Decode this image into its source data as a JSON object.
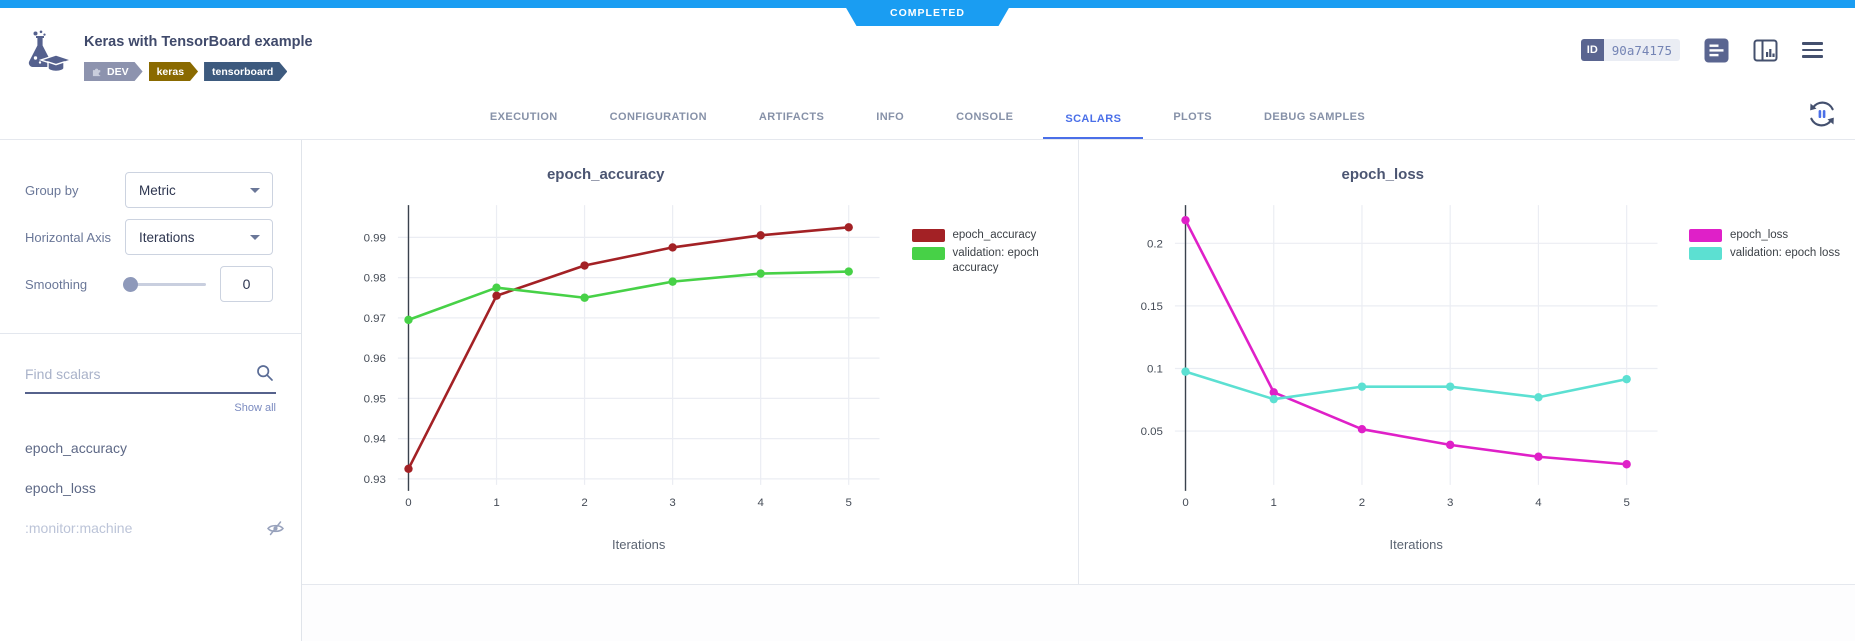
{
  "status_banner": {
    "label": "COMPLETED",
    "color": "#1a9df2"
  },
  "header": {
    "title": "Keras with TensorBoard example",
    "tags": [
      {
        "label": "DEV",
        "color": "#8d93ae"
      },
      {
        "label": "keras",
        "color": "#8a6a00"
      },
      {
        "label": "tensorboard",
        "color": "#3d5a7e"
      }
    ],
    "id_badge": {
      "label": "ID",
      "value": "90a74175"
    },
    "icons": [
      "experiment-icon",
      "details-icon",
      "compare-columns-icon",
      "menu-icon"
    ]
  },
  "tabs": {
    "items": [
      {
        "label": "EXECUTION"
      },
      {
        "label": "CONFIGURATION"
      },
      {
        "label": "ARTIFACTS"
      },
      {
        "label": "INFO"
      },
      {
        "label": "CONSOLE"
      },
      {
        "label": "SCALARS"
      },
      {
        "label": "PLOTS"
      },
      {
        "label": "DEBUG SAMPLES"
      }
    ],
    "active": "SCALARS",
    "active_color": "#4a6fe8"
  },
  "sidebar": {
    "group_by": {
      "label": "Group by",
      "value": "Metric"
    },
    "horizontal_axis": {
      "label": "Horizontal Axis",
      "value": "Iterations"
    },
    "smoothing": {
      "label": "Smoothing",
      "value": "0"
    },
    "search": {
      "placeholder": "Find scalars"
    },
    "show_all": "Show all",
    "metrics": [
      {
        "label": "epoch_accuracy",
        "visible": true
      },
      {
        "label": "epoch_loss",
        "visible": true
      },
      {
        "label": ":monitor:machine",
        "visible": false
      }
    ]
  },
  "chart_data": [
    {
      "type": "line",
      "title": "epoch_accuracy",
      "xlabel": "Iterations",
      "x": [
        0,
        1,
        2,
        3,
        4,
        5
      ],
      "series": [
        {
          "name": "epoch_accuracy",
          "color": "#a32125",
          "values": [
            0.9325,
            0.9755,
            0.983,
            0.9875,
            0.9905,
            0.9925
          ]
        },
        {
          "name": "validation: epoch accuracy",
          "color": "#47d147",
          "values": [
            0.9695,
            0.9775,
            0.975,
            0.979,
            0.981,
            0.9815
          ]
        }
      ],
      "xticks": [
        0,
        1,
        2,
        3,
        4,
        5
      ],
      "yticks": [
        0.93,
        0.94,
        0.95,
        0.96,
        0.97,
        0.98,
        0.99
      ],
      "xlim": [
        -0.12,
        5.35
      ],
      "ylim": [
        0.9285,
        0.998
      ],
      "grid": true,
      "legend_position": "right"
    },
    {
      "type": "line",
      "title": "epoch_loss",
      "xlabel": "Iterations",
      "x": [
        0,
        1,
        2,
        3,
        4,
        5
      ],
      "series": [
        {
          "name": "epoch_loss",
          "color": "#df20c8",
          "values": [
            0.2185,
            0.081,
            0.0515,
            0.039,
            0.0295,
            0.0235
          ]
        },
        {
          "name": "validation: epoch loss",
          "color": "#5ce0d2",
          "values": [
            0.0975,
            0.0755,
            0.0855,
            0.0855,
            0.077,
            0.0915
          ]
        }
      ],
      "xticks": [
        0,
        1,
        2,
        3,
        4,
        5
      ],
      "yticks": [
        0.05,
        0.1,
        0.15,
        0.2
      ],
      "xlim": [
        -0.12,
        5.35
      ],
      "ylim": [
        0.007,
        0.2305
      ],
      "grid": true,
      "legend_position": "right"
    }
  ]
}
